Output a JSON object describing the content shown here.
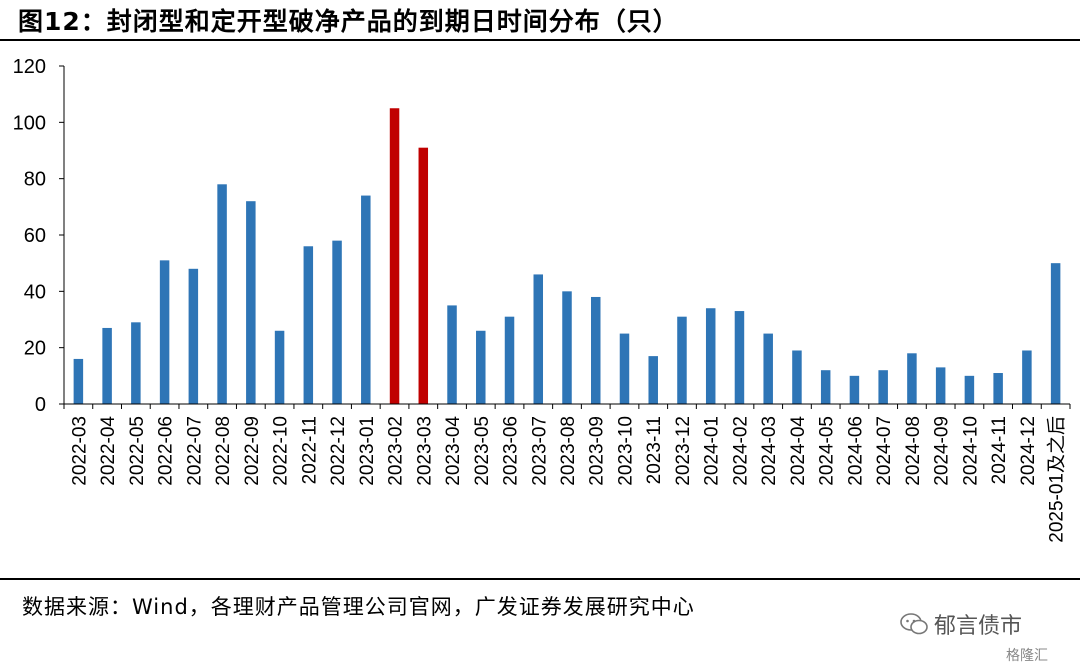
{
  "header": {
    "title": "图12：封闭型和定开型破净产品的到期日时间分布（只）"
  },
  "footer": {
    "source": "数据来源：Wind，各理财产品管理公司官网，广发证券发展研究中心",
    "watermark": "郁言债市",
    "watermark2": "格隆汇"
  },
  "chart_data": {
    "type": "bar",
    "title": "图12：封闭型和定开型破净产品的到期日时间分布（只）",
    "xlabel": "",
    "ylabel": "",
    "ylim": [
      0,
      120
    ],
    "yticks": [
      0,
      20,
      40,
      60,
      80,
      100,
      120
    ],
    "grid": false,
    "legend": "none",
    "colors": {
      "default": "#2E75B6",
      "highlight": "#C00000"
    },
    "highlight": [
      "2023-02",
      "2023-03"
    ],
    "categories": [
      "2022-03",
      "2022-04",
      "2022-05",
      "2022-06",
      "2022-07",
      "2022-08",
      "2022-09",
      "2022-10",
      "2022-11",
      "2022-12",
      "2023-01",
      "2023-02",
      "2023-03",
      "2023-04",
      "2023-05",
      "2023-06",
      "2023-07",
      "2023-08",
      "2023-09",
      "2023-10",
      "2023-11",
      "2023-12",
      "2024-01",
      "2024-02",
      "2024-03",
      "2024-04",
      "2024-05",
      "2024-06",
      "2024-07",
      "2024-08",
      "2024-09",
      "2024-10",
      "2024-11",
      "2024-12",
      "2025-01及之后"
    ],
    "values": [
      16,
      27,
      29,
      51,
      48,
      78,
      72,
      26,
      56,
      58,
      74,
      105,
      91,
      35,
      26,
      31,
      46,
      40,
      38,
      25,
      17,
      31,
      34,
      33,
      25,
      19,
      12,
      10,
      12,
      18,
      13,
      10,
      11,
      19,
      50
    ]
  }
}
